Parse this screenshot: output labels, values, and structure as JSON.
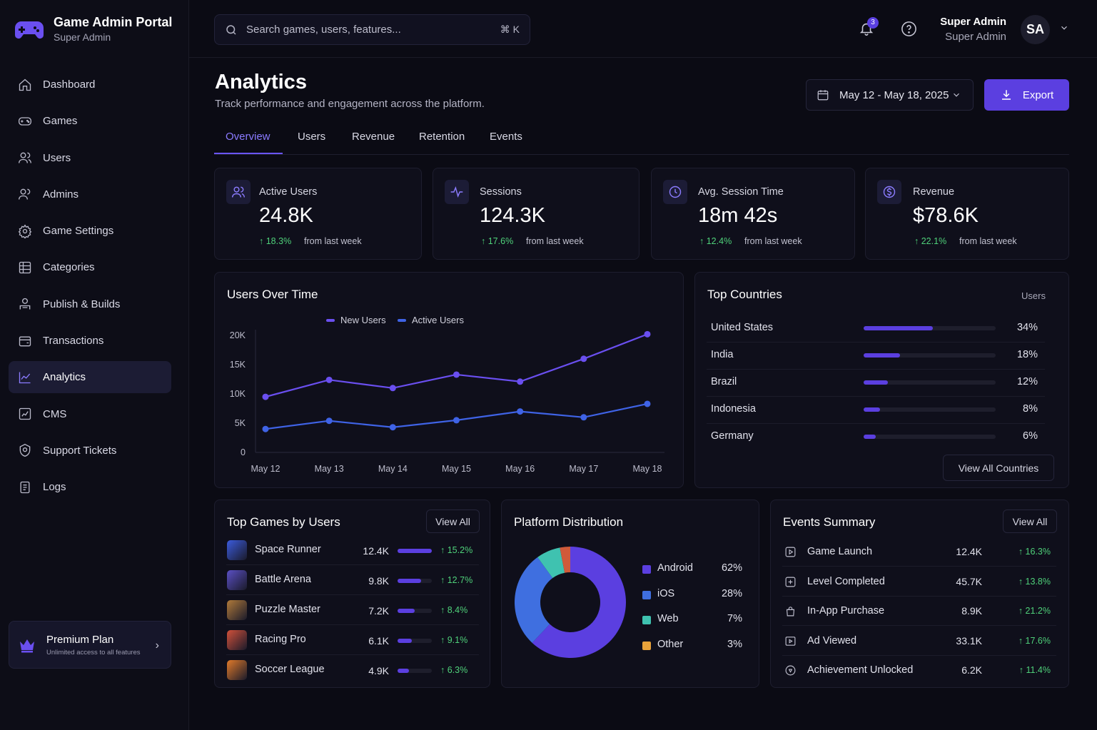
{
  "app": {
    "title": "Game Admin Portal",
    "subtitle": "Super Admin"
  },
  "sidebar": {
    "items": [
      {
        "label": "Dashboard",
        "icon": "home-icon"
      },
      {
        "label": "Games",
        "icon": "gamepad-icon"
      },
      {
        "label": "Users",
        "icon": "users-icon"
      },
      {
        "label": "Admins",
        "icon": "admins-icon"
      },
      {
        "label": "Game Settings",
        "icon": "gear-icon"
      },
      {
        "label": "Categories",
        "icon": "grid-icon"
      },
      {
        "label": "Publish & Builds",
        "icon": "publish-icon"
      },
      {
        "label": "Transactions",
        "icon": "wallet-icon"
      },
      {
        "label": "Analytics",
        "icon": "chart-icon",
        "active": true
      },
      {
        "label": "CMS",
        "icon": "cms-icon"
      },
      {
        "label": "Support Tickets",
        "icon": "support-icon"
      },
      {
        "label": "Logs",
        "icon": "logs-icon"
      }
    ],
    "premium": {
      "title": "Premium Plan",
      "subtitle": "Unlimited access to all features"
    }
  },
  "topbar": {
    "search_placeholder": "Search games, users, features...",
    "search_shortcut": "⌘ K",
    "notification_count": "3",
    "user_name": "Super Admin",
    "user_role": "Super Admin",
    "avatar_initials": "SA"
  },
  "header": {
    "title": "Analytics",
    "subtitle": "Track performance and engagement across the platform.",
    "date_range": "May 12 - May 18, 2025",
    "export_label": "Export"
  },
  "tabs": [
    "Overview",
    "Users",
    "Revenue",
    "Retention",
    "Events"
  ],
  "stats": [
    {
      "label": "Active Users",
      "value": "24.8K",
      "delta": "18.3%",
      "note": "from last week",
      "icon": "users-icon"
    },
    {
      "label": "Sessions",
      "value": "124.3K",
      "delta": "17.6%",
      "note": "from last week",
      "icon": "activity-icon"
    },
    {
      "label": "Avg. Session Time",
      "value": "18m 42s",
      "delta": "12.4%",
      "note": "from last week",
      "icon": "clock-icon"
    },
    {
      "label": "Revenue",
      "value": "$78.6K",
      "delta": "22.1%",
      "note": "from last week",
      "icon": "dollar-icon"
    }
  ],
  "users_over_time": {
    "title": "Users Over Time",
    "chart_data": {
      "type": "line",
      "x": [
        "May 12",
        "May 13",
        "May 14",
        "May 15",
        "May 16",
        "May 17",
        "May 18"
      ],
      "yticks": [
        "0",
        "5K",
        "10K",
        "15K",
        "20K"
      ],
      "ylim": [
        0,
        20000
      ],
      "legend": "top-center",
      "series": [
        {
          "name": "New Users",
          "color": "#6a4ff0",
          "values": [
            9500,
            12400,
            11000,
            13300,
            12100,
            16000,
            20200
          ]
        },
        {
          "name": "Active Users",
          "color": "#3f63e6",
          "values": [
            4000,
            5400,
            4300,
            5500,
            7000,
            6000,
            8300
          ]
        }
      ]
    }
  },
  "top_countries": {
    "title": "Top Countries",
    "column_label": "Users",
    "rows": [
      {
        "name": "United States",
        "pct": "34%",
        "value": 34
      },
      {
        "name": "India",
        "pct": "18%",
        "value": 18
      },
      {
        "name": "Brazil",
        "pct": "12%",
        "value": 12
      },
      {
        "name": "Indonesia",
        "pct": "8%",
        "value": 8
      },
      {
        "name": "Germany",
        "pct": "6%",
        "value": 6
      }
    ],
    "button": "View All Countries"
  },
  "top_games": {
    "title": "Top Games by Users",
    "button": "View All",
    "rows": [
      {
        "name": "Space Runner",
        "users": "12.4K",
        "growth": "15.2%",
        "bar": 1.0,
        "thumb_color": "#3b5bdc"
      },
      {
        "name": "Battle Arena",
        "users": "9.8K",
        "growth": "12.7%",
        "bar": 0.68,
        "thumb_color": "#5a4fc4"
      },
      {
        "name": "Puzzle Master",
        "users": "7.2K",
        "growth": "8.4%",
        "bar": 0.5,
        "thumb_color": "#b07a3a"
      },
      {
        "name": "Racing Pro",
        "users": "6.1K",
        "growth": "9.1%",
        "bar": 0.42,
        "thumb_color": "#d0503a"
      },
      {
        "name": "Soccer League",
        "users": "4.9K",
        "growth": "6.3%",
        "bar": 0.33,
        "thumb_color": "#e07a2a"
      }
    ]
  },
  "platform": {
    "title": "Platform Distribution",
    "chart_data": {
      "type": "pie",
      "categories": [
        "Android",
        "iOS",
        "Web",
        "Other"
      ],
      "values": [
        62,
        28,
        7,
        3
      ],
      "labels": [
        "62%",
        "28%",
        "7%",
        "3%"
      ],
      "colors": [
        "#5b3fe0",
        "#3f6fe0",
        "#3fc2b0",
        "#d05a3a"
      ],
      "legend_colors": [
        "#5b3fe0",
        "#3f6fe0",
        "#3fc2b0",
        "#e8a23a"
      ]
    }
  },
  "events": {
    "title": "Events Summary",
    "button": "View All",
    "rows": [
      {
        "name": "Game Launch",
        "count": "12.4K",
        "growth": "16.3%",
        "icon": "launch-icon"
      },
      {
        "name": "Level Completed",
        "count": "45.7K",
        "growth": "13.8%",
        "icon": "level-icon"
      },
      {
        "name": "In-App Purchase",
        "count": "8.9K",
        "growth": "21.2%",
        "icon": "bag-icon"
      },
      {
        "name": "Ad Viewed",
        "count": "33.1K",
        "growth": "17.6%",
        "icon": "play-icon"
      },
      {
        "name": "Achievement Unlocked",
        "count": "6.2K",
        "growth": "11.4%",
        "icon": "badge-icon"
      }
    ]
  }
}
